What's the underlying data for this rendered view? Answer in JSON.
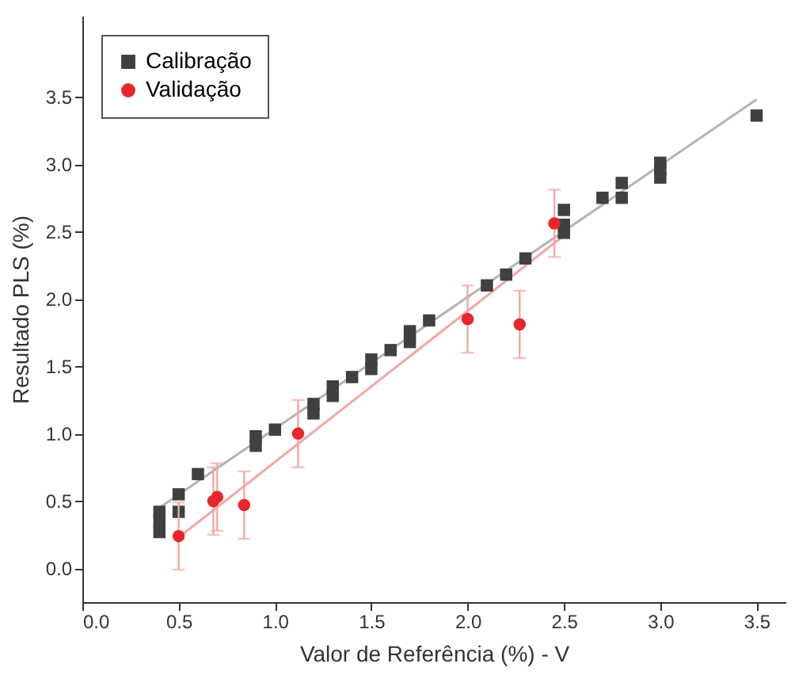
{
  "chart_data": {
    "type": "scatter",
    "xlabel": "Valor de Referência (%) - V",
    "ylabel": "Resultado PLS (%)",
    "xlim": [
      0,
      3.65
    ],
    "ylim": [
      -0.25,
      4.1
    ],
    "xticks": [
      {
        "value": 0,
        "label": "0.0"
      },
      {
        "value": 0.5,
        "label": "0.5"
      },
      {
        "value": 1,
        "label": "1.0"
      },
      {
        "value": 1.5,
        "label": "1.5"
      },
      {
        "value": 2,
        "label": "2.0"
      },
      {
        "value": 2.5,
        "label": "2.5"
      },
      {
        "value": 3,
        "label": "3.0"
      },
      {
        "value": 3.5,
        "label": "3.5"
      }
    ],
    "yticks": [
      {
        "value": 0,
        "label": "0.0"
      },
      {
        "value": 0.5,
        "label": "0.5"
      },
      {
        "value": 1,
        "label": "1.0"
      },
      {
        "value": 1.5,
        "label": "1.5"
      },
      {
        "value": 2,
        "label": "2.0"
      },
      {
        "value": 2.5,
        "label": "2.5"
      },
      {
        "value": 3,
        "label": "3.0"
      },
      {
        "value": 3.5,
        "label": "3.5"
      }
    ],
    "grid": false,
    "legend": "top left",
    "series": [
      {
        "type": "line",
        "color": "#b4b4b4",
        "x": [
          0.4,
          3.5
        ],
        "values": [
          0.45,
          3.48
        ]
      },
      {
        "type": "line",
        "color": "#f4a6a6",
        "x": [
          0.5,
          2.5
        ],
        "values": [
          0.23,
          2.47
        ]
      },
      {
        "name": "Calibração",
        "marker": "square",
        "color": "#404040",
        "x": [
          0.4,
          0.4,
          0.4,
          0.5,
          0.5,
          0.6,
          0.9,
          0.9,
          1.0,
          1.2,
          1.2,
          1.3,
          1.3,
          1.4,
          1.5,
          1.5,
          1.6,
          1.7,
          1.7,
          1.8,
          2.1,
          2.2,
          2.3,
          2.5,
          2.5,
          2.5,
          2.7,
          2.8,
          2.8,
          3.0,
          3.0,
          3.0,
          3.5
        ],
        "values": [
          0.27,
          0.35,
          0.42,
          0.42,
          0.55,
          0.7,
          0.91,
          0.98,
          1.03,
          1.15,
          1.22,
          1.28,
          1.35,
          1.42,
          1.48,
          1.55,
          1.62,
          1.68,
          1.76,
          1.84,
          2.1,
          2.18,
          2.3,
          2.49,
          2.55,
          2.66,
          2.75,
          2.75,
          2.86,
          2.9,
          2.96,
          3.01,
          3.36
        ]
      },
      {
        "name": "Validação",
        "marker": "circle",
        "color": "#e8262b",
        "x": [
          0.5,
          0.68,
          0.7,
          0.84,
          1.12,
          2.0,
          2.27,
          2.45
        ],
        "values": [
          0.24,
          0.5,
          0.53,
          0.47,
          1.0,
          1.85,
          1.81,
          2.56
        ],
        "errors": [
          0.25,
          0.25,
          0.25,
          0.25,
          0.25,
          0.25,
          0.25,
          0.25
        ]
      }
    ]
  }
}
